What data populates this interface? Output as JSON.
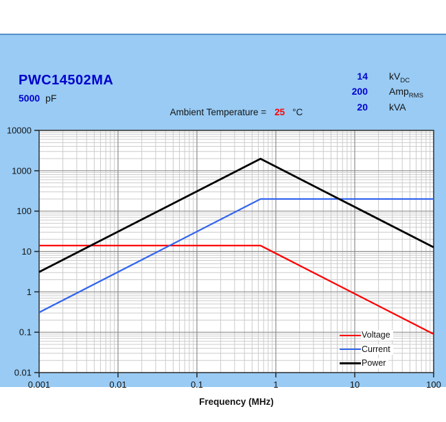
{
  "window": {
    "background": "#FFFFFF",
    "panel_background": "#99CBF4",
    "panel_top_border": "#5590CB"
  },
  "header": {
    "part_number": "PWC14502MA",
    "capacitance": {
      "value": "5000",
      "unit": "pF"
    },
    "ratings": [
      {
        "value": "14",
        "unit": "kV",
        "unit_subscript": "DC"
      },
      {
        "value": "200",
        "unit": "Amp",
        "unit_subscript": "RMS"
      },
      {
        "value": "20",
        "unit": "kVA",
        "unit_subscript": ""
      }
    ],
    "ambient": {
      "label": "Ambient Temperature =",
      "value": "25",
      "unit": "°C",
      "value_color": "#FF0000"
    }
  },
  "chart_data": {
    "type": "line",
    "title": "",
    "xlabel": "Frequency (MHz)",
    "ylabel": "",
    "x_scale": "log",
    "y_scale": "log",
    "xlim": [
      0.001,
      100
    ],
    "ylim": [
      0.01,
      10000
    ],
    "x_tick_labels": [
      "0.001",
      "0.01",
      "0.1",
      "1",
      "10",
      "100"
    ],
    "y_tick_labels": [
      "10000",
      "1000",
      "100",
      "10",
      "1",
      "0.1",
      "0.01"
    ],
    "grid": {
      "major": true,
      "minor": true,
      "major_color": "#8C8C8C",
      "minor_color": "#CBCBCB"
    },
    "plot_background": "#FFFFFF",
    "frame_color": "#333333",
    "legend_position": "inside-bottom-right",
    "series": [
      {
        "name": "Voltage",
        "color": "#FF0000",
        "points": [
          [
            0.001,
            14
          ],
          [
            0.64,
            14
          ],
          [
            100,
            0.09
          ]
        ]
      },
      {
        "name": "Current",
        "color": "#3366EE",
        "points": [
          [
            0.001,
            0.31
          ],
          [
            0.64,
            200
          ],
          [
            100,
            200
          ]
        ]
      },
      {
        "name": "Power",
        "color": "#000000",
        "points": [
          [
            0.001,
            3.1
          ],
          [
            0.64,
            1980
          ],
          [
            100,
            12.7
          ]
        ]
      }
    ]
  }
}
